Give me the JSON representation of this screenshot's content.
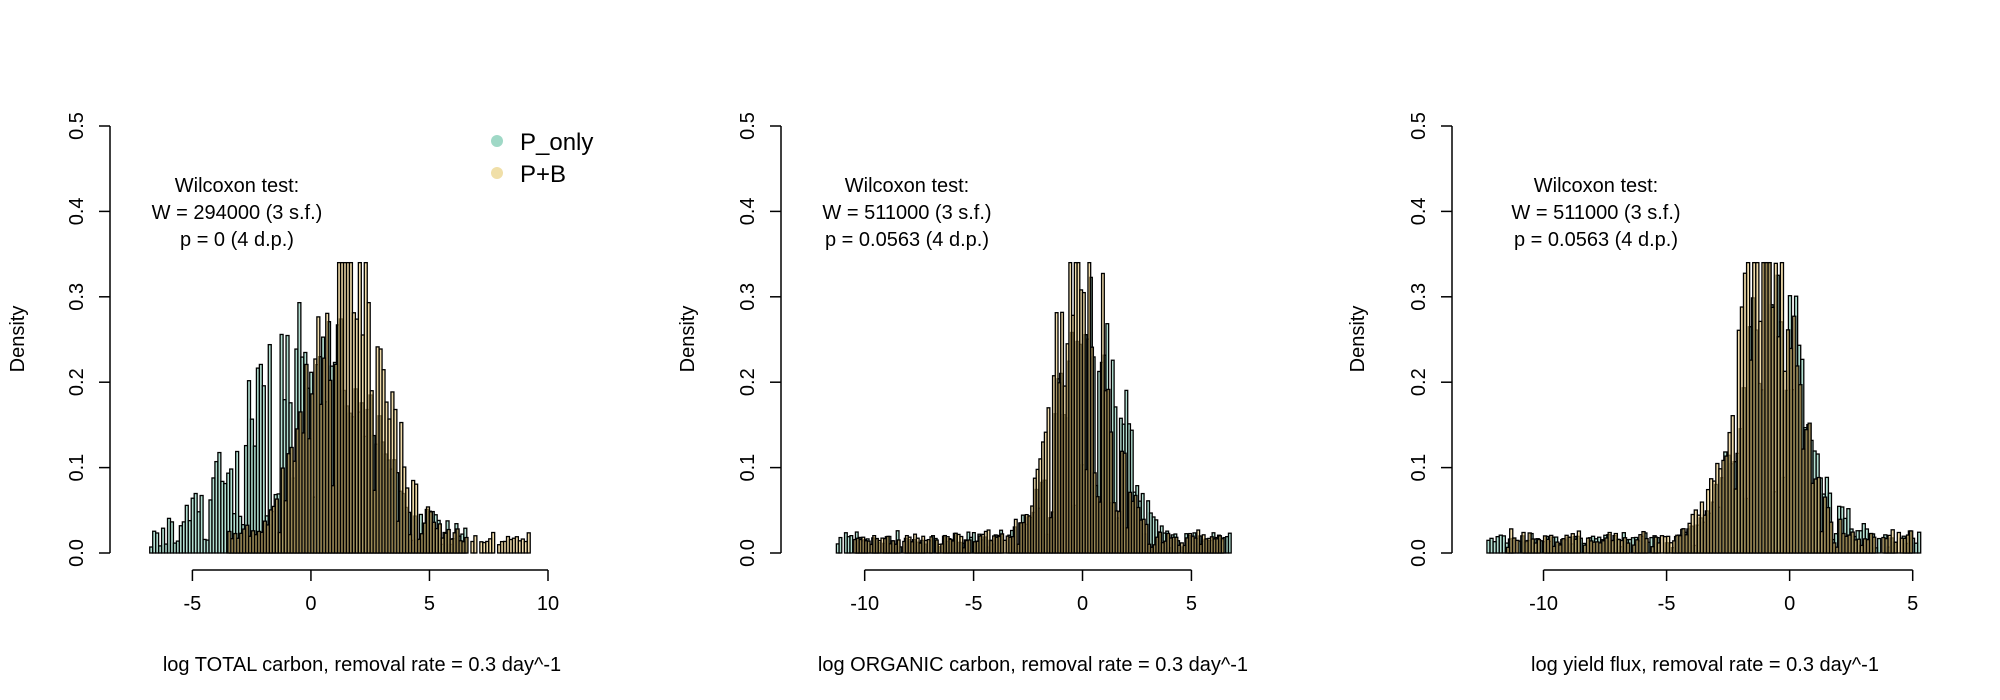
{
  "colors": {
    "P_only": "#9fd8c6",
    "P+B": "#f0dfa8",
    "P_only_fill": "rgba(127,201,178,0.6)",
    "P+B_fill": "rgba(230,197,115,0.6)",
    "bar_stroke": "#000000"
  },
  "legend": {
    "placement": "top-right of first panel",
    "items": [
      {
        "label": "P_only",
        "color": "#9fd8c6"
      },
      {
        "label": "P+B",
        "color": "#f0dfa8"
      }
    ]
  },
  "chart_data": [
    {
      "type": "histogram",
      "title": "",
      "xlabel": "log TOTAL carbon, removal rate = 0.3 day^-1",
      "ylabel": "Density",
      "xlim": [
        -7,
        10
      ],
      "ylim": [
        0,
        0.5
      ],
      "xticks": [
        -5,
        0,
        5,
        10
      ],
      "yticks": [
        0.0,
        0.1,
        0.2,
        0.3,
        0.4,
        0.5
      ],
      "annotation": [
        "Wilcoxon test:",
        "W = 294000 (3 s.f.)",
        "p = 0 (4 d.p.)"
      ],
      "series": [
        {
          "name": "P_only",
          "mean": -0.2,
          "sd": 2.5,
          "peak": 0.23,
          "range": [
            -6.8,
            6.5
          ]
        },
        {
          "name": "P+B",
          "mean": 1.6,
          "sd": 1.5,
          "peak": 0.31,
          "range": [
            -3.5,
            9.2
          ]
        }
      ]
    },
    {
      "type": "histogram",
      "title": "",
      "xlabel": "log ORGANIC carbon, removal rate = 0.3 day^-1",
      "ylabel": "Density",
      "xlim": [
        -11.5,
        7
      ],
      "ylim": [
        0,
        0.5
      ],
      "xticks": [
        -10,
        -5,
        0,
        5
      ],
      "yticks": [
        0.0,
        0.1,
        0.2,
        0.3,
        0.4,
        0.5
      ],
      "annotation": [
        "Wilcoxon test:",
        "W = 511000 (3 s.f.)",
        "p = 0.0563 (4 d.p.)"
      ],
      "series": [
        {
          "name": "P_only",
          "mean": 0.4,
          "sd": 1.3,
          "peak": 0.28,
          "range": [
            -11.3,
            6.8
          ]
        },
        {
          "name": "P+B",
          "mean": 0.0,
          "sd": 1.2,
          "peak": 0.33,
          "range": [
            -10.5,
            6.5
          ]
        }
      ]
    },
    {
      "type": "histogram",
      "title": "",
      "xlabel": "log yield flux, removal rate = 0.3 day^-1",
      "ylabel": "Density",
      "xlim": [
        -12.5,
        5.5
      ],
      "ylim": [
        0,
        0.5
      ],
      "xticks": [
        -10,
        -5,
        0,
        5
      ],
      "yticks": [
        0.0,
        0.1,
        0.2,
        0.3,
        0.4,
        0.5
      ],
      "annotation": [
        "Wilcoxon test:",
        "W = 511000 (3 s.f.)",
        "p = 0.0563 (4 d.p.)"
      ],
      "series": [
        {
          "name": "P_only",
          "mean": -0.6,
          "sd": 1.3,
          "peak": 0.27,
          "range": [
            -12.3,
            5.3
          ]
        },
        {
          "name": "P+B",
          "mean": -1.0,
          "sd": 1.2,
          "peak": 0.33,
          "range": [
            -11.5,
            5.0
          ]
        }
      ]
    }
  ]
}
